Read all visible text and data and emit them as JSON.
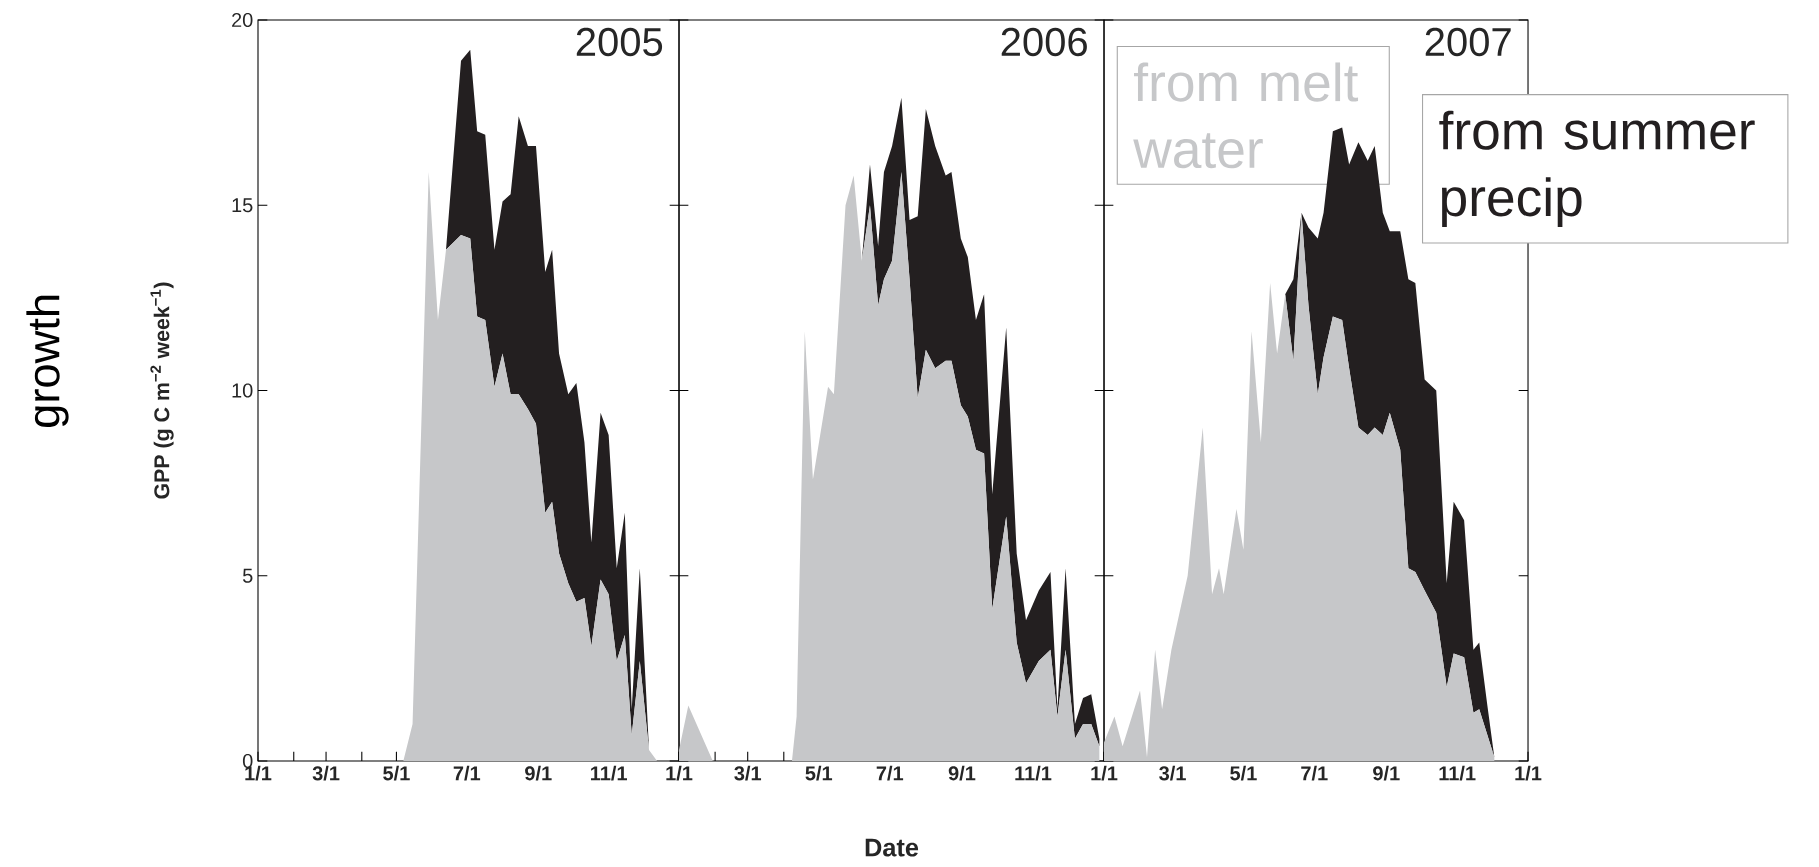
{
  "chart_data": [
    {
      "type": "area",
      "title": "2005",
      "ylabel": "GPP (g C m$^{−2}$ week$^{−1}$)",
      "annotations": [
        "growth"
      ],
      "stacked": true,
      "xlim": [
        "2005-01-01",
        "2006-01-01"
      ],
      "ylim": [
        0,
        20
      ],
      "xticks": [
        {
          "value": "2005-01-01",
          "label": "1/1"
        },
        {
          "value": "2005-02-01",
          "label": null
        },
        {
          "value": "2005-03-01",
          "label": "3/1"
        },
        {
          "value": "2005-04-01",
          "label": null
        },
        {
          "value": "2005-05-01",
          "label": "5/1"
        },
        {
          "value": "2005-06-01",
          "label": null
        },
        {
          "value": "2005-07-01",
          "label": "7/1"
        },
        {
          "value": "2005-08-01",
          "label": null
        },
        {
          "value": "2005-09-01",
          "label": "9/1"
        },
        {
          "value": "2005-10-01",
          "label": null
        },
        {
          "value": "2005-11-01",
          "label": "11/1"
        },
        {
          "value": "2005-12-01",
          "label": null
        },
        {
          "value": "2006-01-01",
          "label": "1/1"
        }
      ],
      "yticks": [
        0,
        5,
        10,
        15,
        20
      ],
      "x": [
        "2005-05-07",
        "2005-05-15",
        "2005-05-29",
        "2005-06-06",
        "2005-06-13",
        "2005-06-26",
        "2005-07-04",
        "2005-07-10",
        "2005-07-17",
        "2005-07-25",
        "2005-08-01",
        "2005-08-08",
        "2005-08-15",
        "2005-08-23",
        "2005-08-30",
        "2005-09-07",
        "2005-09-13",
        "2005-09-19",
        "2005-09-27",
        "2005-10-04",
        "2005-10-11",
        "2005-10-17",
        "2005-10-25",
        "2005-11-01",
        "2005-11-08",
        "2005-11-15",
        "2005-11-21",
        "2005-11-28",
        "2005-12-06",
        "2005-12-13"
      ],
      "series": [
        {
          "color": "#c6c7c9",
          "values": [
            0,
            1.0,
            15.9,
            11.9,
            13.8,
            14.2,
            14.1,
            12.0,
            11.9,
            10.1,
            11.0,
            9.9,
            9.9,
            9.5,
            9.1,
            6.7,
            7.0,
            5.6,
            4.8,
            4.3,
            4.4,
            3.1,
            4.9,
            4.5,
            2.7,
            3.4,
            0.7,
            2.7,
            0.3,
            0
          ]
        },
        {
          "color": "#231f20",
          "values": [
            0,
            0,
            0,
            0,
            0,
            4.7,
            5.1,
            5.0,
            5.0,
            3.7,
            4.1,
            5.4,
            7.5,
            7.1,
            7.5,
            6.5,
            6.8,
            5.4,
            5.1,
            5.9,
            4.2,
            2.8,
            4.5,
            4.3,
            2.5,
            3.3,
            0.7,
            2.5,
            0,
            0
          ]
        }
      ]
    },
    {
      "type": "area",
      "title": "2006",
      "xlabel": "Date",
      "stacked": true,
      "tick_labels": "x",
      "xlim": [
        "2006-01-01",
        "2007-01-01"
      ],
      "ylim": [
        0,
        20
      ],
      "xticks": [
        {
          "value": "2006-01-01",
          "label": null
        },
        {
          "value": "2006-02-01",
          "label": null
        },
        {
          "value": "2006-03-01",
          "label": "3/1"
        },
        {
          "value": "2006-04-01",
          "label": null
        },
        {
          "value": "2006-05-01",
          "label": "5/1"
        },
        {
          "value": "2006-06-01",
          "label": null
        },
        {
          "value": "2006-07-01",
          "label": "7/1"
        },
        {
          "value": "2006-08-01",
          "label": null
        },
        {
          "value": "2006-09-01",
          "label": "9/1"
        },
        {
          "value": "2006-10-01",
          "label": null
        },
        {
          "value": "2006-11-01",
          "label": "11/1"
        },
        {
          "value": "2006-12-01",
          "label": null
        },
        {
          "value": "2007-01-01",
          "label": "1/1"
        }
      ],
      "yticks": [
        0,
        5,
        10,
        15,
        20
      ],
      "x": [
        "2006-01-01",
        "2006-01-09",
        "2006-01-30",
        "2006-04-08",
        "2006-04-12",
        "2006-04-19",
        "2006-04-26",
        "2006-05-09",
        "2006-05-14",
        "2006-05-24",
        "2006-05-31",
        "2006-06-07",
        "2006-06-14",
        "2006-06-21",
        "2006-06-26",
        "2006-07-03",
        "2006-07-11",
        "2006-07-18",
        "2006-07-25",
        "2006-08-01",
        "2006-08-09",
        "2006-08-18",
        "2006-08-23",
        "2006-08-31",
        "2006-09-06",
        "2006-09-13",
        "2006-09-20",
        "2006-09-27",
        "2006-10-09",
        "2006-10-18",
        "2006-10-26",
        "2006-11-06",
        "2006-11-16",
        "2006-11-22",
        "2006-11-29",
        "2006-12-07",
        "2006-12-14",
        "2006-12-21",
        "2006-12-28"
      ],
      "series": [
        {
          "color": "#c6c7c9",
          "values": [
            0.3,
            1.5,
            0,
            0,
            1.2,
            11.6,
            7.6,
            10.1,
            9.9,
            15.0,
            15.8,
            13.5,
            15.0,
            12.3,
            13.0,
            13.5,
            15.9,
            13.0,
            9.8,
            11.1,
            10.6,
            10.8,
            10.8,
            9.6,
            9.3,
            8.4,
            8.3,
            4.1,
            6.6,
            3.2,
            2.1,
            2.7,
            3.0,
            1.2,
            3.0,
            0.6,
            1.0,
            1.0,
            0.4
          ]
        },
        {
          "color": "#231f20",
          "values": [
            0,
            0,
            0,
            0,
            0,
            0,
            0,
            0,
            0,
            0,
            0,
            0,
            1.1,
            1.6,
            2.9,
            3.1,
            2.0,
            1.6,
            4.9,
            6.5,
            6.0,
            5.0,
            5.1,
            4.5,
            4.3,
            3.5,
            4.3,
            3.1,
            5.1,
            2.4,
            1.7,
            1.9,
            2.1,
            0.2,
            2.2,
            0.4,
            0.7,
            0.8,
            0.2
          ]
        }
      ]
    },
    {
      "type": "area",
      "title": "2007",
      "stacked": true,
      "tick_labels": "x",
      "xlim": [
        "2007-01-01",
        "2008-01-01"
      ],
      "ylim": [
        0,
        20
      ],
      "xticks": [
        {
          "value": "2007-01-01",
          "label": null
        },
        {
          "value": "2007-02-01",
          "label": null
        },
        {
          "value": "2007-03-01",
          "label": "3/1"
        },
        {
          "value": "2007-04-01",
          "label": null
        },
        {
          "value": "2007-05-01",
          "label": "5/1"
        },
        {
          "value": "2007-06-01",
          "label": null
        },
        {
          "value": "2007-07-01",
          "label": "7/1"
        },
        {
          "value": "2007-08-01",
          "label": null
        },
        {
          "value": "2007-09-01",
          "label": "9/1"
        },
        {
          "value": "2007-10-01",
          "label": null
        },
        {
          "value": "2007-11-01",
          "label": "11/1"
        },
        {
          "value": "2007-12-01",
          "label": null
        },
        {
          "value": "2008-01-01",
          "label": "1/1"
        }
      ],
      "yticks": [
        0,
        5,
        10,
        15,
        20
      ],
      "x": [
        "2007-01-01",
        "2007-01-10",
        "2007-01-17",
        "2007-02-01",
        "2007-02-07",
        "2007-02-14",
        "2007-02-20",
        "2007-02-28",
        "2007-03-14",
        "2007-03-27",
        "2007-04-04",
        "2007-04-10",
        "2007-04-14",
        "2007-04-25",
        "2007-05-01",
        "2007-05-08",
        "2007-05-16",
        "2007-05-24",
        "2007-05-30",
        "2007-06-06",
        "2007-06-13",
        "2007-06-20",
        "2007-06-26",
        "2007-07-04",
        "2007-07-09",
        "2007-07-17",
        "2007-07-25",
        "2007-07-31",
        "2007-08-08",
        "2007-08-16",
        "2007-08-22",
        "2007-08-29",
        "2007-09-04",
        "2007-09-13",
        "2007-09-20",
        "2007-09-26",
        "2007-10-04",
        "2007-10-14",
        "2007-10-23",
        "2007-10-29",
        "2007-11-07",
        "2007-11-15",
        "2007-11-20",
        "2007-11-27",
        "2007-12-03"
      ],
      "series": [
        {
          "name": "from melt water",
          "color": "#c6c7c9",
          "values": [
            0.5,
            1.2,
            0.4,
            1.9,
            0.1,
            3.0,
            1.4,
            3.0,
            5.0,
            9.0,
            4.5,
            5.2,
            4.5,
            6.8,
            5.7,
            11.6,
            8.6,
            12.9,
            11.0,
            12.6,
            10.8,
            14.8,
            12.3,
            9.9,
            10.9,
            12.0,
            11.9,
            10.6,
            9.0,
            8.8,
            9.0,
            8.8,
            9.4,
            8.4,
            5.2,
            5.1,
            4.6,
            4.0,
            2.0,
            2.9,
            2.8,
            1.3,
            1.4,
            0.7,
            0.1
          ]
        },
        {
          "name": "from summer precip",
          "color": "#231f20",
          "values": [
            0,
            0,
            0,
            0,
            0,
            0,
            0,
            0,
            0,
            0,
            0,
            0,
            0,
            0,
            0,
            0,
            0,
            0,
            0,
            0,
            2.2,
            0,
            2.1,
            4.2,
            3.9,
            5.0,
            5.2,
            5.5,
            7.7,
            7.4,
            7.6,
            6.0,
            4.9,
            5.9,
            7.8,
            7.8,
            5.7,
            6.0,
            2.8,
            4.1,
            3.7,
            1.7,
            1.8,
            0.8,
            0
          ]
        }
      ]
    }
  ]
}
